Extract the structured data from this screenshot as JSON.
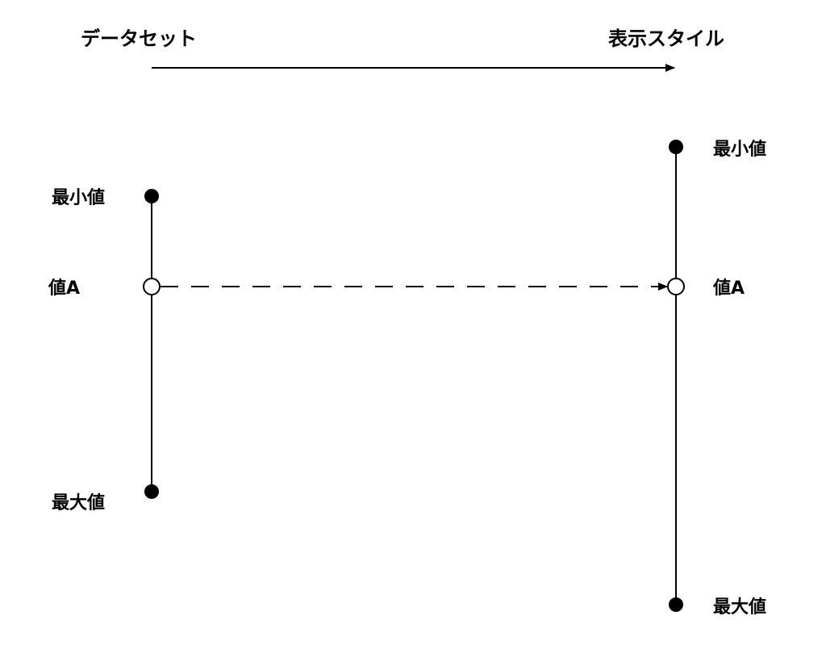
{
  "header": {
    "left_title": "データセット",
    "right_title": "表示スタイル"
  },
  "left_scale": {
    "min_label": "最小値",
    "value_label": "値A",
    "max_label": "最大値"
  },
  "right_scale": {
    "min_label": "最小値",
    "value_label": "値A",
    "max_label": "最大値"
  },
  "colors": {
    "line": "#000000",
    "background": "#ffffff"
  }
}
